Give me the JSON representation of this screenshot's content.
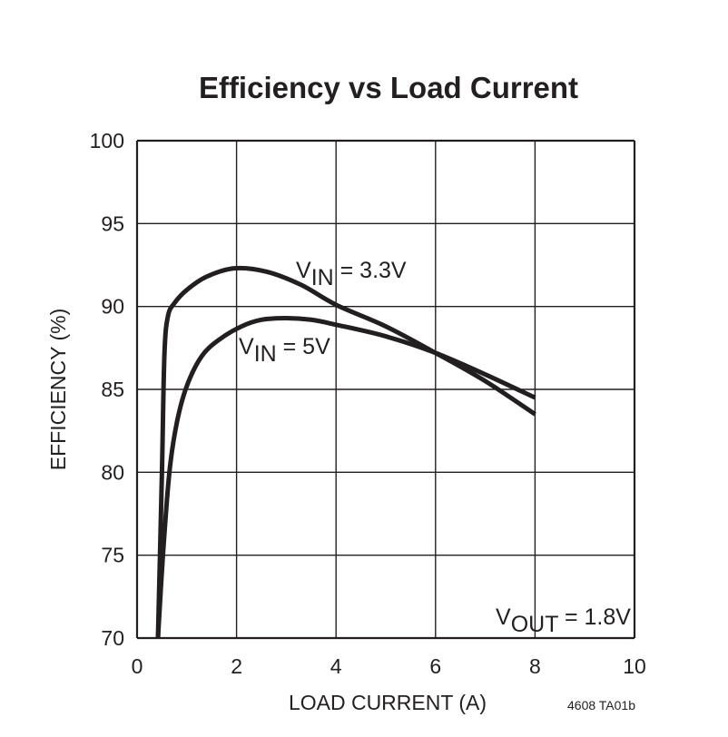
{
  "chart_data": {
    "type": "line",
    "title": "Efficiency vs Load Current",
    "xlabel": "LOAD CURRENT (A)",
    "ylabel": "EFFICIENCY (%)",
    "xlim": [
      0,
      10
    ],
    "ylim": [
      70,
      100
    ],
    "xticks": [
      "0",
      "2",
      "4",
      "6",
      "8",
      "10"
    ],
    "yticks": [
      "70",
      "75",
      "80",
      "85",
      "90",
      "95",
      "100"
    ],
    "grid": true,
    "series": [
      {
        "name": "VIN = 3.3V",
        "label_main": "V",
        "label_sub": "IN",
        "label_rest": " = 3.3V",
        "x": [
          0.42,
          0.5,
          0.55,
          0.62,
          0.75,
          1.0,
          1.4,
          1.95,
          2.6,
          3.3,
          4.0,
          5.0,
          6.0,
          7.0,
          8.0
        ],
        "y": [
          70,
          80,
          87.1,
          89.4,
          90.2,
          91.0,
          91.8,
          92.3,
          92.1,
          91.3,
          90.1,
          88.8,
          87.2,
          85.5,
          83.5
        ]
      },
      {
        "name": "VIN = 5V",
        "label_main": "V",
        "label_sub": "IN",
        "label_rest": " = 5V",
        "x": [
          0.42,
          0.52,
          0.65,
          0.8,
          1.0,
          1.3,
          1.65,
          2.1,
          2.5,
          3.0,
          3.5,
          4.0,
          5.0,
          6.0,
          7.0,
          8.0
        ],
        "y": [
          70,
          75,
          80,
          83,
          85.2,
          87.0,
          88.0,
          88.8,
          89.2,
          89.3,
          89.2,
          88.9,
          88.2,
          87.2,
          85.9,
          84.5
        ]
      }
    ],
    "annotations": [
      {
        "main": "V",
        "sub": "OUT",
        "rest": " = 1.8V"
      }
    ],
    "figure_code": "4608 TA01b"
  }
}
